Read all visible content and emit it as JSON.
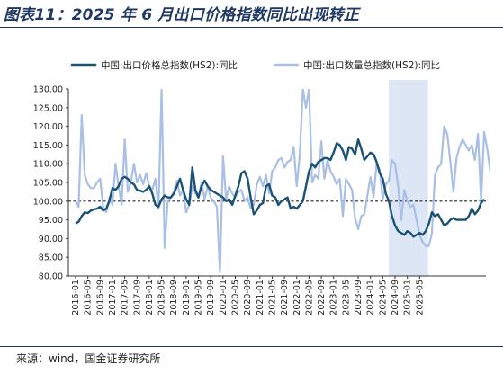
{
  "header": {
    "title": "图表11：2025 年 6 月出口价格指数同比出现转正"
  },
  "footer": {
    "source": "来源：wind，国金证券研究所"
  },
  "chart_data": {
    "type": "line",
    "title": "图表11：2025 年 6 月出口价格指数同比出现转正",
    "xlabel": "",
    "ylabel": "",
    "ylim": [
      80,
      130
    ],
    "yticks": [
      "80.00",
      "85.00",
      "90.00",
      "95.00",
      "100.00",
      "105.00",
      "110.00",
      "115.00",
      "120.00",
      "125.00",
      "130.00"
    ],
    "xticks": [
      "2016-01",
      "2016-05",
      "2016-09",
      "2017-01",
      "2017-05",
      "2017-09",
      "2018-01",
      "2018-05",
      "2018-09",
      "2019-01",
      "2019-05",
      "2019-09",
      "2020-01",
      "2020-05",
      "2020-09",
      "2021-01",
      "2021-05",
      "2021-09",
      "2022-01",
      "2022-05",
      "2022-09",
      "2023-01",
      "2023-05",
      "2023-09",
      "2024-01",
      "2024-05",
      "2024-09",
      "2025-01",
      "2025-05"
    ],
    "reference_line": 100,
    "shaded_region": {
      "from": "2024-07",
      "to": "2025-06",
      "color": "#dde6f5"
    },
    "grid": false,
    "legend_position": "top",
    "series": [
      {
        "name": "中国:出口价格总指数(HS2):同比",
        "color": "#1a5276",
        "width": 2.4,
        "values": [
          94.0,
          94.5,
          96.0,
          97.0,
          96.8,
          97.5,
          97.8,
          98.0,
          98.5,
          97.5,
          98.0,
          100.0,
          103.5,
          103.0,
          104.0,
          106.0,
          106.5,
          106.0,
          105.0,
          104.5,
          103.0,
          102.8,
          102.5,
          103.0,
          104.0,
          102.0,
          99.0,
          98.5,
          100.5,
          101.5,
          101.0,
          101.0,
          102.0,
          104.0,
          106.0,
          103.0,
          100.5,
          99.0,
          109.0,
          103.0,
          101.0,
          104.0,
          105.5,
          104.0,
          103.0,
          102.5,
          102.0,
          101.5,
          101.0,
          100.0,
          100.5,
          99.0,
          101.5,
          104.0,
          107.5,
          108.0,
          106.0,
          101.0,
          96.5,
          97.5,
          99.0,
          99.5,
          104.0,
          104.5,
          101.5,
          101.0,
          99.0,
          100.0,
          100.5,
          101.0,
          98.0,
          98.5,
          98.0,
          99.0,
          100.0,
          104.0,
          108.0,
          110.0,
          109.0,
          110.5,
          111.0,
          111.5,
          111.5,
          111.0,
          113.0,
          115.5,
          115.0,
          113.5,
          111.0,
          114.5,
          114.0,
          112.5,
          116.5,
          114.0,
          111.0,
          112.0,
          113.0,
          112.5,
          110.5,
          107.5,
          106.0,
          102.0,
          100.0,
          96.0,
          93.5,
          92.0,
          91.5,
          91.0,
          92.0,
          91.5,
          90.5,
          91.0,
          91.5,
          91.0,
          92.0,
          94.0,
          97.0,
          96.0,
          96.5,
          95.0,
          93.5,
          94.0,
          95.0,
          95.5,
          95.0,
          95.0,
          95.0,
          95.0,
          96.0,
          98.0,
          96.5,
          97.5,
          99.5,
          100.5
        ]
      },
      {
        "name": "中国:出口数量总指数(HS2):同比",
        "color": "#a9bfe6",
        "width": 2.2,
        "values": [
          100.0,
          98.5,
          123.0,
          107.0,
          104.5,
          103.5,
          103.5,
          105.0,
          106.0,
          98.5,
          97.0,
          101.0,
          99.0,
          110.0,
          104.0,
          99.0,
          116.5,
          102.5,
          105.0,
          110.0,
          105.0,
          107.0,
          104.5,
          107.5,
          104.0,
          103.0,
          106.0,
          98.0,
          130.0,
          87.5,
          100.0,
          101.0,
          102.5,
          105.5,
          101.5,
          103.0,
          97.0,
          99.0,
          104.0,
          102.0,
          101.0,
          105.0,
          100.5,
          104.0,
          101.0,
          100.0,
          98.5,
          81.0,
          112.0,
          100.5,
          104.0,
          102.0,
          101.0,
          102.5,
          103.0,
          100.0,
          101.0,
          98.0,
          99.0,
          104.5,
          106.5,
          104.0,
          107.0,
          102.0,
          108.0,
          109.0,
          111.0,
          111.5,
          109.0,
          110.5,
          111.0,
          114.5,
          104.0,
          112.5,
          130.0,
          125.0,
          130.0,
          105.0,
          107.0,
          106.0,
          116.0,
          106.0,
          111.0,
          108.0,
          106.5,
          104.5,
          106.0,
          96.0,
          106.0,
          104.5,
          103.0,
          95.5,
          92.5,
          96.0,
          96.5,
          101.5,
          106.5,
          101.0,
          110.0,
          108.5,
          100.5,
          104.5,
          105.5,
          111.0,
          110.0,
          104.0,
          95.0,
          103.0,
          100.0,
          98.5,
          99.0,
          95.0,
          91.0,
          89.0,
          88.0,
          88.0,
          91.5,
          107.0,
          109.0,
          110.0,
          120.0,
          118.0,
          110.5,
          102.5,
          111.5,
          114.5,
          116.5,
          115.0,
          113.5,
          115.0,
          111.0,
          118.0,
          100.0,
          118.5,
          114.0,
          108.0,
          107.0
        ]
      }
    ]
  }
}
